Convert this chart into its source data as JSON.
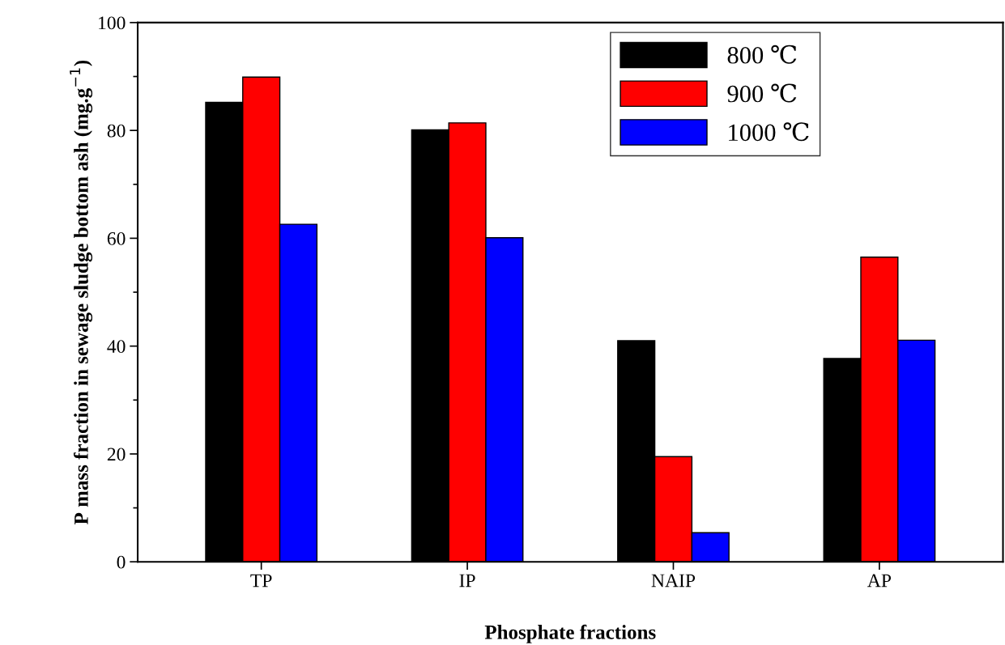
{
  "chart_data": {
    "type": "bar",
    "xlabel": "Phosphate fractions",
    "ylabel": "P mass fraction in sewage sludge bottom ash (mg.g$^{−1}$)",
    "categories": [
      "TP",
      "IP",
      "NAIP",
      "AP"
    ],
    "series": [
      {
        "name": "800 ℃",
        "color": "#000000",
        "values": [
          85.2,
          80.1,
          41.0,
          37.7
        ]
      },
      {
        "name": "900 ℃",
        "color": "#ff0000",
        "values": [
          89.9,
          81.4,
          19.5,
          56.5
        ]
      },
      {
        "name": "1000 ℃",
        "color": "#0000ff",
        "values": [
          62.6,
          60.1,
          5.4,
          41.1
        ]
      }
    ],
    "ylim": [
      0,
      100
    ],
    "yticks": [
      0,
      20,
      40,
      60,
      80,
      100
    ],
    "legend": "top right",
    "grid": false
  }
}
